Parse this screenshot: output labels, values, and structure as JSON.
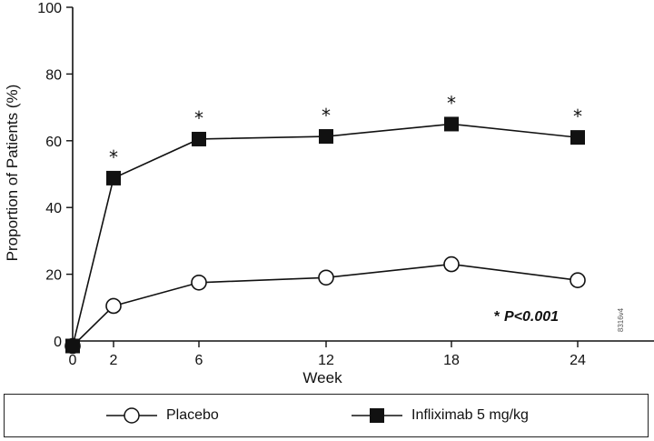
{
  "chart_data": {
    "type": "line",
    "ylabel": "Proportion of Patients (%)",
    "xlabel": "Week",
    "ylim": [
      0,
      100
    ],
    "yticks": [
      0,
      20,
      40,
      60,
      80,
      100
    ],
    "xticks": [
      0,
      2,
      6,
      12,
      18,
      24
    ],
    "series": [
      {
        "name": "Placebo",
        "marker": "open-circle",
        "color": "#111111",
        "x": [
          0,
          2,
          6,
          12,
          18,
          24
        ],
        "y": [
          -1.5,
          10.5,
          17.5,
          19,
          23,
          18.2
        ]
      },
      {
        "name": "Infliximab 5 mg/kg",
        "marker": "filled-square",
        "color": "#111111",
        "x": [
          0,
          2,
          6,
          12,
          18,
          24
        ],
        "y": [
          -1.5,
          48.8,
          60.5,
          61.3,
          65,
          61
        ]
      }
    ],
    "significance_marker": "*",
    "significant_x": [
      2,
      6,
      12,
      18,
      24
    ],
    "annotation": {
      "star": "*",
      "text": "P<0.001"
    },
    "side_code": "8316v4",
    "grid": false,
    "legend_position": "bottom"
  }
}
